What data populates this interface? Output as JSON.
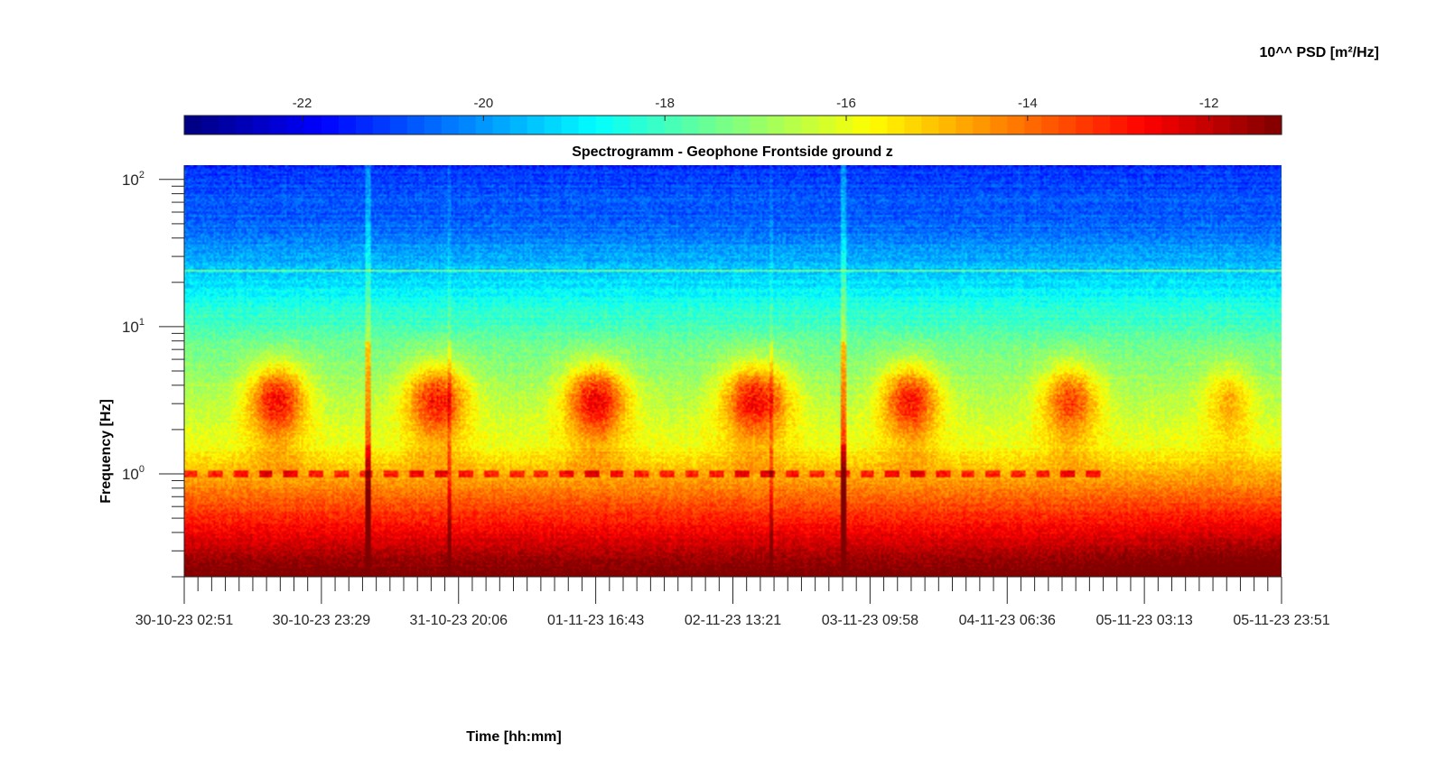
{
  "chart_data": {
    "type": "heatmap",
    "title": "Spectrogramm - Geophone Frontside ground z",
    "xlabel": "Time [hh:mm]",
    "ylabel": "Frequency [Hz]",
    "colorbar_label": "10^^ PSD [m²/Hz]",
    "colormap": "jet",
    "colorbar_ticks": [
      -22,
      -20,
      -18,
      -16,
      -14,
      -12
    ],
    "colorbar_tick_labels": [
      "-22",
      "-20",
      "-18",
      "-16",
      "-14",
      "-12"
    ],
    "clim": [
      -23.3,
      -11.2
    ],
    "yscale": "log",
    "ylim": [
      0.2,
      125
    ],
    "ytick_labels": [
      {
        "base": "10",
        "exp": "2",
        "value": 100
      },
      {
        "base": "10",
        "exp": "1",
        "value": 10
      },
      {
        "base": "10",
        "exp": "0",
        "value": 1
      }
    ],
    "xlim": [
      "30-10-23 02:51",
      "05-11-23 23:51"
    ],
    "xtick_labels": [
      "30-10-23 02:51",
      "30-10-23 23:29",
      "31-10-23 20:06",
      "01-11-23 16:43",
      "02-11-23 13:21",
      "03-11-23 09:58",
      "04-11-23 06:36",
      "05-11-23 03:13",
      "05-11-23 23:51"
    ],
    "grid": false,
    "colorbar_location": "top",
    "features": {
      "daytime_energy_bursts_hz": [
        2,
        5
      ],
      "daytime_burst_psd_exp": -13.5,
      "persistent_line_hz": 1.0,
      "persistent_line_hz_high": 24,
      "low_frequency_psd_exp": -12.5,
      "high_frequency_psd_exp": -20.5,
      "transient_events": [
        "31-10-23 08:00",
        "03-11-23 21:00"
      ]
    }
  }
}
